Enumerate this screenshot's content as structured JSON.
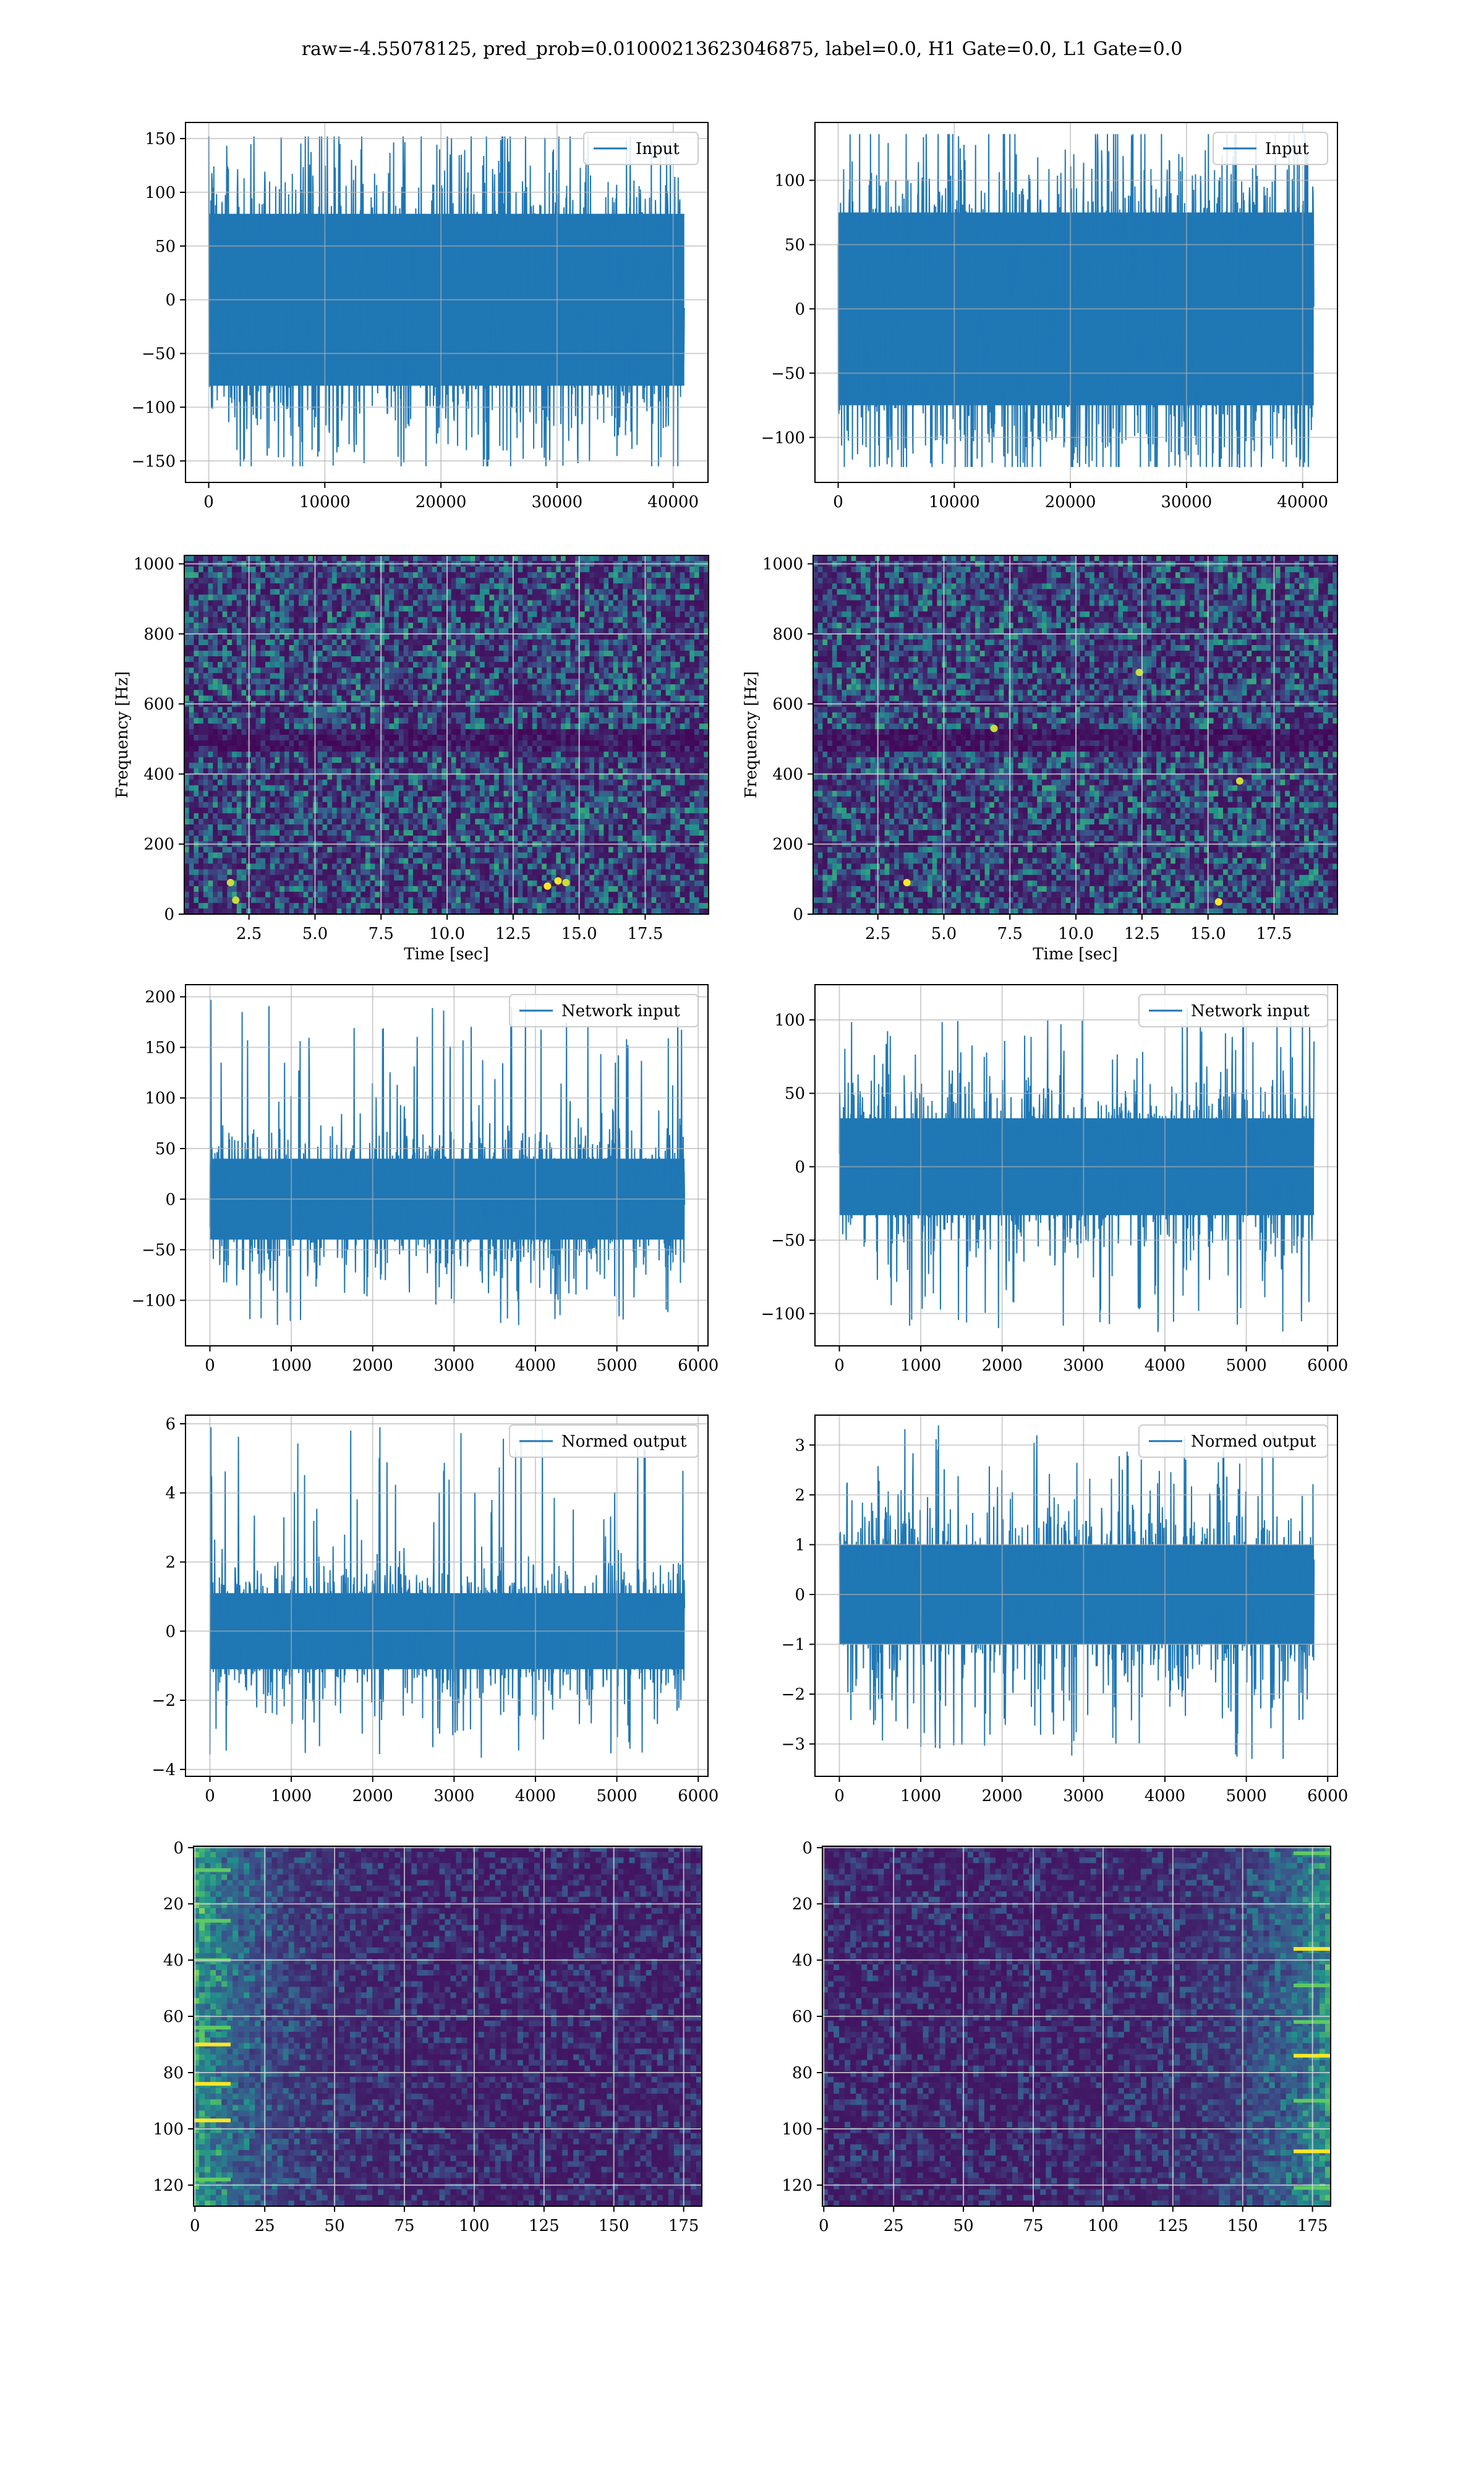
{
  "figure": {
    "title": "raw=-4.55078125, pred_prob=0.01000213623046875, label=0.0, H1 Gate=0.0, L1 Gate=0.0"
  },
  "colors": {
    "line": "#1f77b4",
    "grid": "#b0b0b0",
    "viridis_low": "#440154",
    "viridis_mid": "#21918c",
    "viridis_high": "#fde725"
  },
  "chart_data": [
    {
      "type": "line",
      "row": 0,
      "col": 0,
      "legend": "Input",
      "legend_loc": "upper right",
      "xlim": [
        -2000,
        43000
      ],
      "ylim": [
        -170,
        165
      ],
      "x_range": [
        0,
        40960
      ],
      "xticks": [
        0,
        10000,
        20000,
        30000,
        40000
      ],
      "yticks": [
        -150,
        -100,
        -50,
        0,
        50,
        100,
        150
      ],
      "band": [
        -80,
        80
      ],
      "spike_max": 152,
      "spike_min": -155,
      "grid": true
    },
    {
      "type": "line",
      "row": 0,
      "col": 1,
      "legend": "Input",
      "legend_loc": "upper right",
      "xlim": [
        -2000,
        43000
      ],
      "ylim": [
        -135,
        145
      ],
      "x_range": [
        0,
        40960
      ],
      "xticks": [
        0,
        10000,
        20000,
        30000,
        40000
      ],
      "yticks": [
        -100,
        -50,
        0,
        50,
        100
      ],
      "band": [
        -75,
        75
      ],
      "spike_max": 136,
      "spike_min": -123,
      "grid": true
    },
    {
      "type": "heatmap",
      "row": 1,
      "col": 0,
      "colormap": "viridis",
      "xlabel": "Time [sec]",
      "ylabel": "Frequency [Hz]",
      "xlim": [
        0.05,
        19.9
      ],
      "ylim": [
        0,
        1024
      ],
      "xticks": [
        2.5,
        5.0,
        7.5,
        10.0,
        12.5,
        15.0,
        17.5
      ],
      "yticks": [
        0,
        200,
        400,
        600,
        800,
        1000
      ],
      "dark_band_hz": [
        470,
        520
      ],
      "hotspots": [
        [
          2.0,
          40
        ],
        [
          14.2,
          95
        ],
        [
          14.5,
          90
        ],
        [
          13.8,
          80
        ],
        [
          1.8,
          90
        ]
      ],
      "grid": true
    },
    {
      "type": "heatmap",
      "row": 1,
      "col": 1,
      "colormap": "viridis",
      "xlabel": "Time [sec]",
      "ylabel": "Frequency [Hz]",
      "xlim": [
        0.05,
        19.9
      ],
      "ylim": [
        0,
        1024
      ],
      "xticks": [
        2.5,
        5.0,
        7.5,
        10.0,
        12.5,
        15.0,
        17.5
      ],
      "yticks": [
        0,
        200,
        400,
        600,
        800,
        1000
      ],
      "dark_band_hz": [
        470,
        520
      ],
      "hotspots": [
        [
          6.9,
          530
        ],
        [
          15.4,
          35
        ],
        [
          12.4,
          690
        ],
        [
          3.6,
          90
        ],
        [
          16.2,
          380
        ]
      ],
      "grid": true
    },
    {
      "type": "line",
      "row": 2,
      "col": 0,
      "legend": "Network input",
      "legend_loc": "upper right",
      "xlim": [
        -300,
        6120
      ],
      "ylim": [
        -145,
        212
      ],
      "x_range": [
        0,
        5832
      ],
      "xticks": [
        0,
        1000,
        2000,
        3000,
        4000,
        5000,
        6000
      ],
      "yticks": [
        -100,
        -50,
        0,
        50,
        100,
        150,
        200
      ],
      "band": [
        -40,
        40
      ],
      "spike_max": 197,
      "spike_min": -125,
      "grid": true
    },
    {
      "type": "line",
      "row": 2,
      "col": 1,
      "legend": "Network input",
      "legend_loc": "upper right",
      "xlim": [
        -300,
        6120
      ],
      "ylim": [
        -122,
        124
      ],
      "x_range": [
        0,
        5832
      ],
      "xticks": [
        0,
        1000,
        2000,
        3000,
        4000,
        5000,
        6000
      ],
      "yticks": [
        -100,
        -50,
        0,
        50,
        100
      ],
      "band": [
        -33,
        33
      ],
      "spike_max": 110,
      "spike_min": -113,
      "grid": true
    },
    {
      "type": "line",
      "row": 3,
      "col": 0,
      "legend": "Normed output",
      "legend_loc": "upper right",
      "xlim": [
        -300,
        6120
      ],
      "ylim": [
        -4.2,
        6.25
      ],
      "x_range": [
        0,
        5832
      ],
      "xticks": [
        0,
        1000,
        2000,
        3000,
        4000,
        5000,
        6000
      ],
      "yticks": [
        -4,
        -2,
        0,
        2,
        4,
        6
      ],
      "band": [
        -1.1,
        1.1
      ],
      "spike_max": 5.9,
      "spike_min": -3.7,
      "grid": true
    },
    {
      "type": "line",
      "row": 3,
      "col": 1,
      "legend": "Normed output",
      "legend_loc": "upper right",
      "xlim": [
        -300,
        6120
      ],
      "ylim": [
        -3.65,
        3.6
      ],
      "x_range": [
        0,
        5832
      ],
      "xticks": [
        0,
        1000,
        2000,
        3000,
        4000,
        5000,
        6000
      ],
      "yticks": [
        -3,
        -2,
        -1,
        0,
        1,
        2,
        3
      ],
      "band": [
        -1.0,
        1.0
      ],
      "spike_max": 3.4,
      "spike_min": -3.3,
      "grid": true
    },
    {
      "type": "heatmap",
      "row": 4,
      "col": 0,
      "colormap": "viridis",
      "xlim": [
        -0.5,
        181.5
      ],
      "ylim": [
        127.5,
        -0.5
      ],
      "grid": true,
      "xticks": [
        0,
        25,
        50,
        75,
        100,
        125,
        150,
        175
      ],
      "yticks": [
        0,
        20,
        40,
        60,
        80,
        100,
        120
      ],
      "bright_side": "left",
      "bright_rows": [
        70,
        84,
        97,
        26,
        8,
        64,
        118,
        40
      ]
    },
    {
      "type": "heatmap",
      "row": 4,
      "col": 1,
      "colormap": "viridis",
      "xlim": [
        -0.5,
        181.5
      ],
      "ylim": [
        127.5,
        -0.5
      ],
      "grid": true,
      "xticks": [
        0,
        25,
        50,
        75,
        100,
        125,
        150,
        175
      ],
      "yticks": [
        0,
        20,
        40,
        60,
        80,
        100,
        120
      ],
      "bright_side": "right",
      "bright_rows": [
        36,
        74,
        108,
        2,
        90,
        49,
        62,
        121
      ]
    }
  ]
}
